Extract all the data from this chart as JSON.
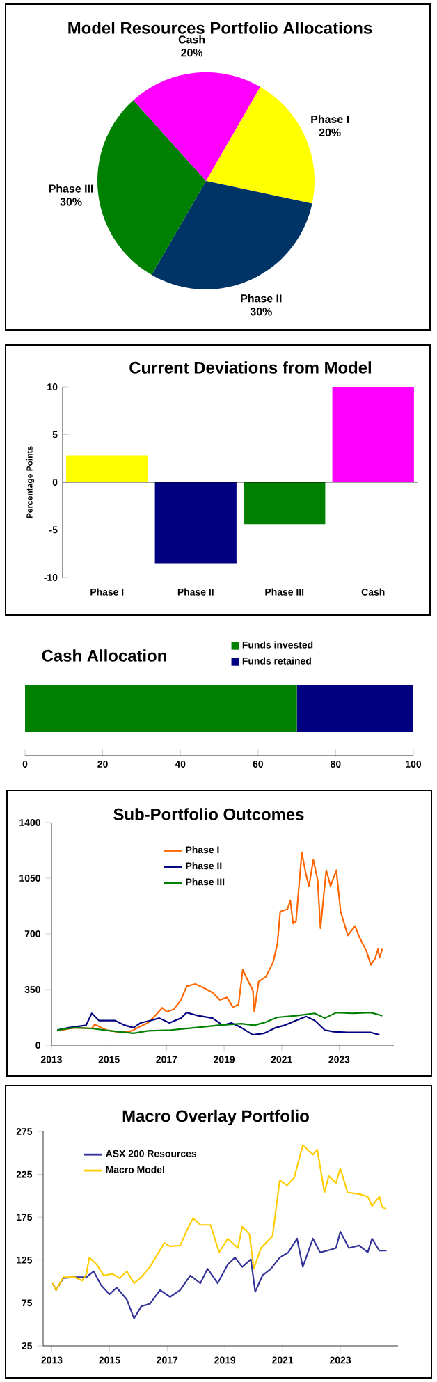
{
  "chart_data": [
    {
      "type": "pie",
      "title": "Model Resources Portfolio Allocations",
      "categories": [
        "Phase I",
        "Phase II",
        "Phase III",
        "Cash"
      ],
      "values": [
        20,
        30,
        30,
        20
      ],
      "colors": [
        "#ffff00",
        "#003366",
        "#008000",
        "#ff00ff"
      ],
      "value_labels": [
        "20%",
        "30%",
        "30%",
        "20%"
      ]
    },
    {
      "type": "bar",
      "title": "Current Deviations from Model",
      "ylabel": "Percentage Points",
      "categories": [
        "Phase I",
        "Phase II",
        "Phase III",
        "Cash"
      ],
      "values": [
        2.8,
        -8.5,
        -4.4,
        10
      ],
      "colors": [
        "#ffff00",
        "#000080",
        "#008000",
        "#ff00ff"
      ],
      "ylim": [
        -10,
        10
      ],
      "yticks": [
        -10,
        -5,
        0,
        5,
        10
      ]
    },
    {
      "type": "bar",
      "title": "Cash Allocation",
      "orientation": "horizontal",
      "stacked": true,
      "categories": [
        null
      ],
      "legend": "top right",
      "xlim": [
        0,
        100
      ],
      "xticks": [
        0,
        20,
        40,
        60,
        80,
        100
      ],
      "series": [
        {
          "name": "Funds invested",
          "color": "#008000",
          "values": [
            70
          ]
        },
        {
          "name": "Funds retained",
          "color": "#000080",
          "values": [
            30
          ]
        }
      ]
    },
    {
      "type": "line",
      "title": "Sub-Portfolio Outcomes",
      "legend": "top",
      "xlim": [
        2013,
        2024.9
      ],
      "xticks": [
        2013,
        2015,
        2017,
        2019,
        2021,
        2023
      ],
      "ylim": [
        0,
        1400
      ],
      "yticks": [
        0,
        350,
        700,
        1050,
        1400
      ],
      "series": [
        {
          "name": "Phase I",
          "color": "#ff6600",
          "x": [
            2013.2,
            2013.8,
            2014.4,
            2014.5,
            2014.9,
            2015.4,
            2015.8,
            2016.0,
            2016.35,
            2016.6,
            2016.85,
            2017.0,
            2017.25,
            2017.5,
            2017.7,
            2018.0,
            2018.3,
            2018.6,
            2018.85,
            2019.1,
            2019.3,
            2019.5,
            2019.65,
            2019.8,
            2020.0,
            2020.05,
            2020.2,
            2020.45,
            2020.7,
            2020.85,
            2020.95,
            2021.2,
            2021.3,
            2021.4,
            2021.5,
            2021.7,
            2021.85,
            2021.95,
            2022.1,
            2022.25,
            2022.35,
            2022.55,
            2022.7,
            2022.9,
            2023.05,
            2023.3,
            2023.55,
            2023.7,
            2023.95,
            2024.1,
            2024.25,
            2024.35,
            2024.4,
            2024.5
          ],
          "values": [
            90,
            110,
            105,
            130,
            95,
            80,
            90,
            110,
            140,
            185,
            235,
            210,
            225,
            285,
            370,
            385,
            360,
            330,
            285,
            300,
            240,
            255,
            475,
            415,
            345,
            210,
            400,
            430,
            520,
            635,
            840,
            855,
            910,
            765,
            780,
            1210,
            1070,
            1000,
            1165,
            1040,
            735,
            1100,
            1000,
            1100,
            840,
            690,
            750,
            680,
            590,
            505,
            545,
            605,
            550,
            605
          ]
        },
        {
          "name": "Phase II",
          "color": "#000080",
          "x": [
            2013.2,
            2013.6,
            2014.2,
            2014.4,
            2014.65,
            2015.2,
            2015.55,
            2015.85,
            2016.1,
            2016.45,
            2016.75,
            2017.1,
            2017.5,
            2017.7,
            2018.1,
            2018.6,
            2018.95,
            2019.25,
            2019.6,
            2020.0,
            2020.4,
            2020.8,
            2021.1,
            2021.5,
            2021.85,
            2022.15,
            2022.5,
            2022.8,
            2023.3,
            2023.8,
            2024.1,
            2024.4
          ],
          "values": [
            95,
            110,
            125,
            200,
            155,
            155,
            125,
            110,
            140,
            155,
            170,
            140,
            170,
            205,
            185,
            170,
            125,
            140,
            110,
            65,
            75,
            110,
            125,
            155,
            180,
            155,
            95,
            85,
            80,
            80,
            80,
            65
          ]
        },
        {
          "name": "Phase III",
          "color": "#008000",
          "x": [
            2013.2,
            2013.8,
            2014.4,
            2015.05,
            2015.85,
            2016.35,
            2017.15,
            2018.0,
            2018.8,
            2019.6,
            2020.05,
            2020.45,
            2020.85,
            2021.5,
            2022.15,
            2022.5,
            2022.9,
            2023.45,
            2024.1,
            2024.5
          ],
          "values": [
            95,
            110,
            105,
            90,
            75,
            90,
            95,
            110,
            125,
            135,
            125,
            145,
            175,
            185,
            200,
            170,
            205,
            200,
            205,
            185
          ]
        }
      ]
    },
    {
      "type": "line",
      "title": "Macro Overlay Portfolio",
      "legend": "top left",
      "xlim": [
        2012.7,
        2025
      ],
      "xticks": [
        2013,
        2015,
        2017,
        2019,
        2021,
        2023
      ],
      "ylim": [
        25,
        275
      ],
      "yticks": [
        25,
        75,
        125,
        175,
        225,
        275
      ],
      "series": [
        {
          "name": "ASX 200 Resources",
          "color": "#333399",
          "x": [
            2013.03,
            2013.15,
            2013.4,
            2013.8,
            2014.2,
            2014.45,
            2014.7,
            2015.0,
            2015.25,
            2015.6,
            2015.85,
            2016.1,
            2016.4,
            2016.75,
            2017.1,
            2017.45,
            2017.8,
            2018.15,
            2018.4,
            2018.75,
            2019.1,
            2019.35,
            2019.6,
            2019.9,
            2020.05,
            2020.3,
            2020.6,
            2020.9,
            2021.2,
            2021.5,
            2021.7,
            2022.05,
            2022.3,
            2022.55,
            2022.85,
            2023.0,
            2023.3,
            2023.65,
            2023.95,
            2024.1,
            2024.35,
            2024.6
          ],
          "values": [
            98,
            90,
            104,
            105,
            105,
            112,
            96,
            85,
            93,
            79,
            57,
            71,
            74,
            90,
            82,
            90,
            107,
            98,
            115,
            98,
            120,
            128,
            117,
            126,
            88,
            107,
            115,
            128,
            134,
            150,
            117,
            150,
            134,
            136,
            139,
            158,
            139,
            142,
            134,
            150,
            136,
            136
          ]
        },
        {
          "name": "Macro Model",
          "color": "#ffcc00",
          "x": [
            2013.03,
            2013.15,
            2013.4,
            2013.8,
            2014.05,
            2014.2,
            2014.3,
            2014.55,
            2014.8,
            2015.1,
            2015.35,
            2015.6,
            2015.85,
            2016.1,
            2016.4,
            2016.65,
            2016.9,
            2017.1,
            2017.45,
            2017.7,
            2017.9,
            2018.15,
            2018.5,
            2018.8,
            2019.1,
            2019.45,
            2019.6,
            2019.85,
            2020.0,
            2020.25,
            2020.65,
            2020.9,
            2021.15,
            2021.4,
            2021.7,
            2022.05,
            2022.2,
            2022.45,
            2022.6,
            2022.85,
            2023.0,
            2023.25,
            2023.65,
            2023.95,
            2024.1,
            2024.35,
            2024.45,
            2024.6
          ],
          "values": [
            98,
            90,
            105,
            105,
            101,
            109,
            128,
            120,
            107,
            109,
            104,
            112,
            98,
            105,
            117,
            131,
            145,
            141,
            142,
            161,
            174,
            166,
            166,
            134,
            150,
            139,
            164,
            155,
            115,
            139,
            153,
            218,
            212,
            221,
            259,
            248,
            254,
            204,
            223,
            215,
            232,
            204,
            202,
            199,
            188,
            199,
            187,
            184
          ]
        }
      ]
    }
  ]
}
